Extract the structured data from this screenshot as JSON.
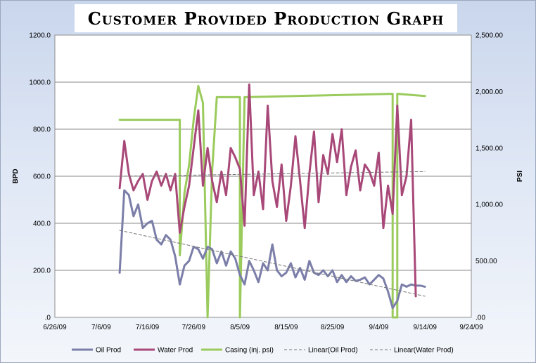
{
  "chart_data": {
    "type": "line",
    "title": "Customer Provided Production Graph",
    "ylabel": "BPD",
    "y2label": "PSI",
    "ylim": [
      0,
      1200
    ],
    "y2lim": [
      0,
      2500
    ],
    "xlim": [
      "6/26/09",
      "9/24/09"
    ],
    "x_ticks": [
      "6/26/09",
      "7/6/09",
      "7/16/09",
      "7/26/09",
      "8/5/09",
      "8/15/09",
      "8/25/09",
      "9/4/09",
      "9/14/09",
      "9/24/09"
    ],
    "y_ticks": [
      ".0",
      "200.0",
      "400.0",
      "600.0",
      "800.0",
      "1000.0",
      "1200.0"
    ],
    "y2_ticks": [
      ".00",
      "500.00",
      "1,000.00",
      "1,500.00",
      "2,000.00",
      "2,500.00"
    ],
    "grid": true,
    "legend_position": "bottom",
    "series": [
      {
        "name": "Oil Prod",
        "axis": "left",
        "color": "#7b7ea8",
        "style": "solid",
        "points": [
          [
            "7/10/09",
            190
          ],
          [
            "7/11/09",
            540
          ],
          [
            "7/12/09",
            520
          ],
          [
            "7/13/09",
            430
          ],
          [
            "7/14/09",
            480
          ],
          [
            "7/15/09",
            380
          ],
          [
            "7/16/09",
            400
          ],
          [
            "7/17/09",
            410
          ],
          [
            "7/18/09",
            330
          ],
          [
            "7/19/09",
            310
          ],
          [
            "7/20/09",
            350
          ],
          [
            "7/21/09",
            330
          ],
          [
            "7/22/09",
            260
          ],
          [
            "7/23/09",
            140
          ],
          [
            "7/24/09",
            220
          ],
          [
            "7/25/09",
            240
          ],
          [
            "7/26/09",
            300
          ],
          [
            "7/27/09",
            290
          ],
          [
            "7/28/09",
            250
          ],
          [
            "7/29/09",
            300
          ],
          [
            "7/30/09",
            290
          ],
          [
            "7/31/09",
            230
          ],
          [
            "8/1/09",
            280
          ],
          [
            "8/2/09",
            220
          ],
          [
            "8/3/09",
            280
          ],
          [
            "8/4/09",
            250
          ],
          [
            "8/5/09",
            180
          ],
          [
            "8/6/09",
            140
          ],
          [
            "8/7/09",
            240
          ],
          [
            "8/8/09",
            200
          ],
          [
            "8/9/09",
            150
          ],
          [
            "8/10/09",
            230
          ],
          [
            "8/11/09",
            200
          ],
          [
            "8/12/09",
            310
          ],
          [
            "8/13/09",
            200
          ],
          [
            "8/14/09",
            175
          ],
          [
            "8/15/09",
            190
          ],
          [
            "8/16/09",
            230
          ],
          [
            "8/17/09",
            170
          ],
          [
            "8/18/09",
            210
          ],
          [
            "8/19/09",
            160
          ],
          [
            "8/20/09",
            240
          ],
          [
            "8/21/09",
            190
          ],
          [
            "8/22/09",
            180
          ],
          [
            "8/23/09",
            200
          ],
          [
            "8/24/09",
            175
          ],
          [
            "8/25/09",
            200
          ],
          [
            "8/26/09",
            150
          ],
          [
            "8/27/09",
            180
          ],
          [
            "8/28/09",
            150
          ],
          [
            "8/29/09",
            175
          ],
          [
            "8/30/09",
            155
          ],
          [
            "8/31/09",
            160
          ],
          [
            "9/1/09",
            170
          ],
          [
            "9/2/09",
            140
          ],
          [
            "9/3/09",
            160
          ],
          [
            "9/4/09",
            180
          ],
          [
            "9/5/09",
            165
          ],
          [
            "9/6/09",
            110
          ],
          [
            "9/7/09",
            40
          ],
          [
            "9/8/09",
            70
          ],
          [
            "9/9/09",
            140
          ],
          [
            "9/10/09",
            130
          ],
          [
            "9/11/09",
            140
          ],
          [
            "9/12/09",
            135
          ],
          [
            "9/13/09",
            135
          ],
          [
            "9/14/09",
            130
          ]
        ]
      },
      {
        "name": "Water Prod",
        "axis": "left",
        "color": "#a84878",
        "style": "solid",
        "points": [
          [
            "7/10/09",
            550
          ],
          [
            "7/11/09",
            750
          ],
          [
            "7/12/09",
            610
          ],
          [
            "7/13/09",
            540
          ],
          [
            "7/14/09",
            580
          ],
          [
            "7/15/09",
            610
          ],
          [
            "7/16/09",
            500
          ],
          [
            "7/17/09",
            580
          ],
          [
            "7/18/09",
            620
          ],
          [
            "7/19/09",
            560
          ],
          [
            "7/20/09",
            610
          ],
          [
            "7/21/09",
            540
          ],
          [
            "7/22/09",
            610
          ],
          [
            "7/23/09",
            360
          ],
          [
            "7/24/09",
            470
          ],
          [
            "7/25/09",
            560
          ],
          [
            "7/26/09",
            720
          ],
          [
            "7/27/09",
            880
          ],
          [
            "7/28/09",
            560
          ],
          [
            "7/29/09",
            720
          ],
          [
            "7/30/09",
            580
          ],
          [
            "7/31/09",
            490
          ],
          [
            "8/1/09",
            620
          ],
          [
            "8/2/09",
            520
          ],
          [
            "8/3/09",
            720
          ],
          [
            "8/4/09",
            680
          ],
          [
            "8/5/09",
            630
          ],
          [
            "8/6/09",
            390
          ],
          [
            "8/7/09",
            990
          ],
          [
            "8/8/09",
            520
          ],
          [
            "8/9/09",
            620
          ],
          [
            "8/10/09",
            460
          ],
          [
            "8/11/09",
            900
          ],
          [
            "8/12/09",
            580
          ],
          [
            "8/13/09",
            470
          ],
          [
            "8/14/09",
            650
          ],
          [
            "8/15/09",
            410
          ],
          [
            "8/16/09",
            560
          ],
          [
            "8/17/09",
            770
          ],
          [
            "8/18/09",
            580
          ],
          [
            "8/19/09",
            380
          ],
          [
            "8/20/09",
            610
          ],
          [
            "8/21/09",
            790
          ],
          [
            "8/22/09",
            490
          ],
          [
            "8/23/09",
            690
          ],
          [
            "8/24/09",
            610
          ],
          [
            "8/25/09",
            780
          ],
          [
            "8/26/09",
            660
          ],
          [
            "8/27/09",
            800
          ],
          [
            "8/28/09",
            520
          ],
          [
            "8/29/09",
            640
          ],
          [
            "8/30/09",
            710
          ],
          [
            "8/31/09",
            540
          ],
          [
            "9/1/09",
            650
          ],
          [
            "9/2/09",
            620
          ],
          [
            "9/3/09",
            560
          ],
          [
            "9/4/09",
            700
          ],
          [
            "9/5/09",
            380
          ],
          [
            "9/6/09",
            560
          ],
          [
            "9/7/09",
            440
          ],
          [
            "9/8/09",
            900
          ],
          [
            "9/9/09",
            520
          ],
          [
            "9/10/09",
            600
          ],
          [
            "9/11/09",
            840
          ],
          [
            "9/12/09",
            90
          ]
        ]
      },
      {
        "name": "Casing (inj. psi)",
        "axis": "right",
        "color": "#9acb5c",
        "style": "solid",
        "points": [
          [
            "7/10/09",
            1750
          ],
          [
            "7/23/09",
            1750
          ],
          [
            "7/23/09",
            550
          ],
          [
            "7/24/09",
            1100
          ],
          [
            "7/25/09",
            1350
          ],
          [
            "7/26/09",
            1750
          ],
          [
            "7/27/09",
            2050
          ],
          [
            "7/28/09",
            1900
          ],
          [
            "7/29/09",
            0
          ],
          [
            "7/30/09",
            1300
          ],
          [
            "7/31/09",
            1950
          ],
          [
            "8/5/09",
            1950
          ],
          [
            "8/5/09",
            0
          ],
          [
            "8/6/09",
            1950
          ],
          [
            "9/7/09",
            1980
          ],
          [
            "9/7/09",
            0
          ],
          [
            "9/8/09",
            0
          ],
          [
            "9/8/09",
            1980
          ],
          [
            "9/14/09",
            1960
          ]
        ]
      },
      {
        "name": "Linear(Oil Prod)",
        "axis": "left",
        "color": "#777777",
        "style": "dashed",
        "points": [
          [
            "7/10/09",
            370
          ],
          [
            "9/14/09",
            90
          ]
        ]
      },
      {
        "name": "Linear(Water Prod)",
        "axis": "left",
        "color": "#777777",
        "style": "dashed",
        "points": [
          [
            "7/10/09",
            600
          ],
          [
            "9/14/09",
            620
          ]
        ]
      }
    ]
  }
}
